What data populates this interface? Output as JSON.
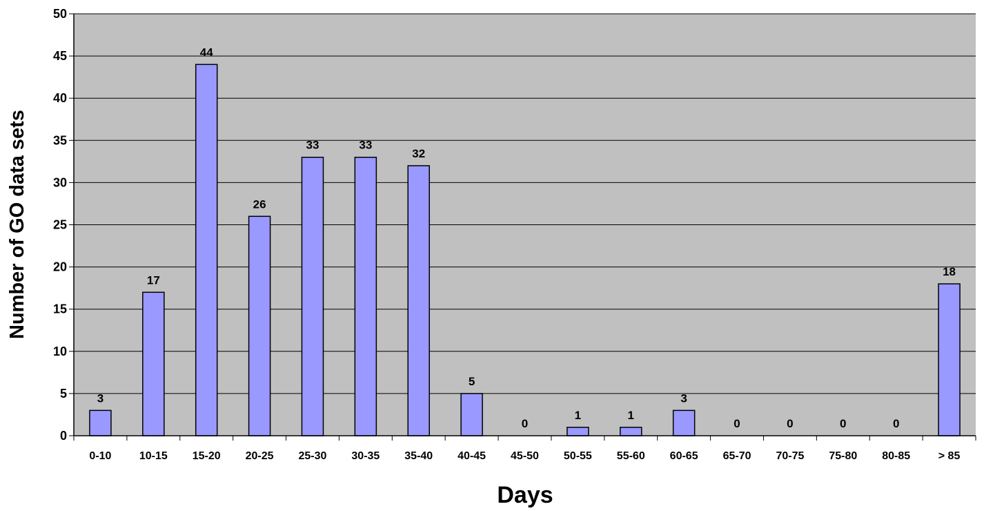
{
  "colors": {
    "plot_background": "#c0c0c0",
    "bar_fill": "#9999ff",
    "bar_stroke": "#000000",
    "gridline": "#000000",
    "page_background": "#ffffff"
  },
  "chart_data": {
    "type": "bar",
    "xlabel": "Days",
    "ylabel": "Number of GO data sets",
    "ylim": [
      0,
      50
    ],
    "y_ticks": [
      0,
      5,
      10,
      15,
      20,
      25,
      30,
      35,
      40,
      45,
      50
    ],
    "grid": true,
    "legend": "none",
    "categories": [
      "0-10",
      "10-15",
      "15-20",
      "20-25",
      "25-30",
      "30-35",
      "35-40",
      "40-45",
      "45-50",
      "50-55",
      "55-60",
      "60-65",
      "65-70",
      "70-75",
      "75-80",
      "80-85",
      "> 85"
    ],
    "values": [
      3,
      17,
      44,
      26,
      33,
      33,
      32,
      5,
      0,
      1,
      1,
      3,
      0,
      0,
      0,
      0,
      18
    ]
  }
}
